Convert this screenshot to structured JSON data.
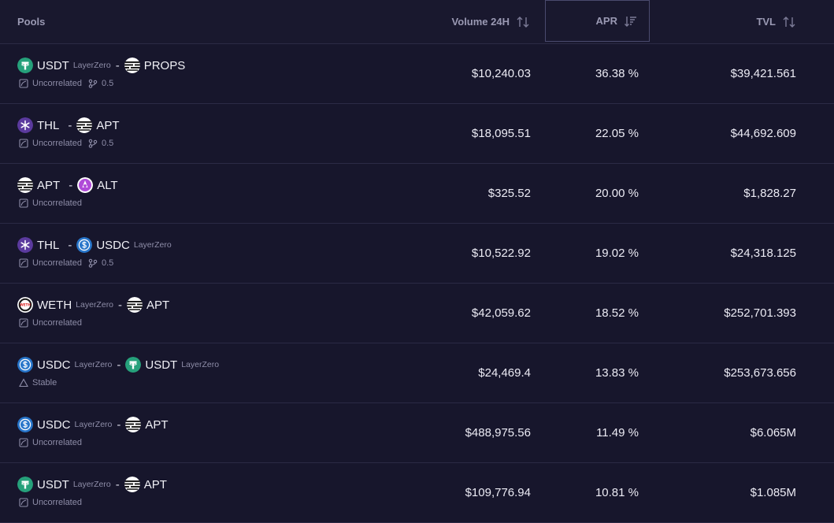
{
  "header": {
    "pools": "Pools",
    "volume": "Volume 24H",
    "apr": "APR",
    "tvl": "TVL"
  },
  "rows": [
    {
      "t1": "USDT",
      "t1_sub": "LayerZero",
      "t1_icon": "usdt-icon",
      "t2": "PROPS",
      "t2_sub": "",
      "t2_icon": "apt-icon",
      "curve": "Uncorrelated",
      "fee": "0.5",
      "volume": "$10,240.03",
      "apr": "36.38 %",
      "tvl": "$39,421.561"
    },
    {
      "t1": "THL",
      "t1_sub": "",
      "t1_icon": "thl-icon",
      "t2": "APT",
      "t2_sub": "",
      "t2_icon": "apt-icon",
      "curve": "Uncorrelated",
      "fee": "0.5",
      "volume": "$18,095.51",
      "apr": "22.05 %",
      "tvl": "$44,692.609"
    },
    {
      "t1": "APT",
      "t1_sub": "",
      "t1_icon": "apt-icon",
      "t2": "ALT",
      "t2_sub": "",
      "t2_icon": "alt-icon",
      "curve": "Uncorrelated",
      "fee": "",
      "volume": "$325.52",
      "apr": "20.00 %",
      "tvl": "$1,828.27"
    },
    {
      "t1": "THL",
      "t1_sub": "",
      "t1_icon": "thl-icon",
      "t2": "USDC",
      "t2_sub": "LayerZero",
      "t2_icon": "usdc-icon",
      "curve": "Uncorrelated",
      "fee": "0.5",
      "volume": "$10,522.92",
      "apr": "19.02 %",
      "tvl": "$24,318.125"
    },
    {
      "t1": "WETH",
      "t1_sub": "LayerZero",
      "t1_icon": "weth-icon",
      "t2": "APT",
      "t2_sub": "",
      "t2_icon": "apt-icon",
      "curve": "Uncorrelated",
      "fee": "",
      "volume": "$42,059.62",
      "apr": "18.52 %",
      "tvl": "$252,701.393"
    },
    {
      "t1": "USDC",
      "t1_sub": "LayerZero",
      "t1_icon": "usdc-icon",
      "t2": "USDT",
      "t2_sub": "LayerZero",
      "t2_icon": "usdt-icon",
      "curve": "Stable",
      "fee": "",
      "volume": "$24,469.4",
      "apr": "13.83 %",
      "tvl": "$253,673.656"
    },
    {
      "t1": "USDC",
      "t1_sub": "LayerZero",
      "t1_icon": "usdc-icon",
      "t2": "APT",
      "t2_sub": "",
      "t2_icon": "apt-icon",
      "curve": "Uncorrelated",
      "fee": "",
      "volume": "$488,975.56",
      "apr": "11.49 %",
      "tvl": "$6.065M"
    },
    {
      "t1": "USDT",
      "t1_sub": "LayerZero",
      "t1_icon": "usdt-icon",
      "t2": "APT",
      "t2_sub": "",
      "t2_icon": "apt-icon",
      "curve": "Uncorrelated",
      "fee": "",
      "volume": "$109,776.94",
      "apr": "10.81 %",
      "tvl": "$1.085M"
    }
  ],
  "colors": {
    "background": "#17162c",
    "border": "#2b2a45",
    "usdt": "#26a17b",
    "usdc": "#2775ca",
    "thl": "#5b3a9e",
    "alt": "#b04bd8"
  }
}
